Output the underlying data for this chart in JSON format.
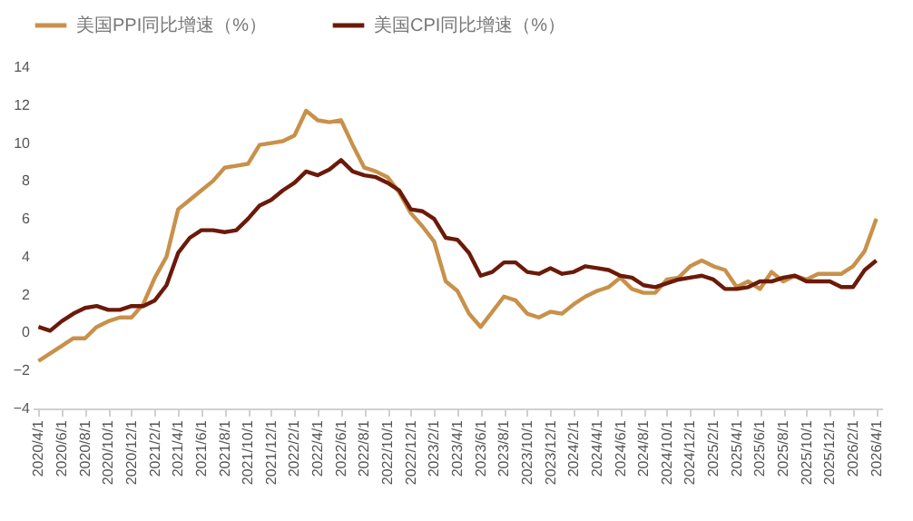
{
  "chart_data": {
    "type": "line",
    "legend": "top",
    "ylim": [
      -4,
      14
    ],
    "yticks": [
      -4,
      -2,
      0,
      2,
      4,
      6,
      8,
      10,
      12,
      14
    ],
    "categories": [
      "2020/4/1",
      null,
      "2020/6/1",
      null,
      "2020/8/1",
      null,
      "2020/10/1",
      null,
      "2020/12/1",
      null,
      "2021/2/1",
      null,
      "2021/4/1",
      null,
      "2021/6/1",
      null,
      "2021/8/1",
      null,
      "2021/10/1",
      null,
      "2021/12/1",
      null,
      "2022/2/1",
      null,
      "2022/4/1",
      null,
      "2022/6/1",
      null,
      "2022/8/1",
      null,
      "2022/10/1",
      null,
      "2022/12/1",
      null,
      "2023/2/1",
      null,
      "2023/4/1",
      null,
      "2023/6/1",
      null,
      "2023/8/1",
      null,
      "2023/10/1",
      null,
      "2023/12/1",
      null,
      "2024/2/1",
      null,
      "2024/4/1",
      null,
      "2024/6/1",
      null,
      "2024/8/1",
      null,
      "2024/10/1",
      null,
      "2024/12/1",
      null,
      "2025/2/1",
      null,
      "2025/4/1",
      null,
      "2025/6/1",
      null,
      "2025/8/1",
      null,
      "2025/10/1",
      null,
      "2025/12/1",
      null,
      "2026/2/1",
      null,
      "2026/4/1"
    ],
    "series": [
      {
        "name": "美国PPI同比增速（%）",
        "color": "#c8914a",
        "values": [
          -1.5,
          -1.1,
          -0.7,
          -0.3,
          -0.3,
          0.3,
          0.6,
          0.8,
          0.8,
          1.5,
          2.9,
          4.0,
          6.5,
          7.0,
          7.5,
          8.0,
          8.7,
          8.8,
          8.9,
          9.9,
          10.0,
          10.1,
          10.4,
          11.7,
          11.2,
          11.1,
          11.2,
          9.9,
          8.7,
          8.5,
          8.2,
          7.4,
          6.3,
          5.6,
          4.8,
          2.7,
          2.2,
          1.0,
          0.3,
          1.1,
          1.9,
          1.7,
          1.0,
          0.8,
          1.1,
          1.0,
          1.5,
          1.9,
          2.2,
          2.4,
          2.9,
          2.3,
          2.1,
          2.1,
          2.8,
          2.9,
          3.5,
          3.8,
          3.5,
          3.3,
          2.4,
          2.7,
          2.3,
          3.2,
          2.7,
          3.0,
          2.8,
          3.1,
          3.1,
          3.1,
          3.5,
          4.3,
          6.0
        ]
      },
      {
        "name": "美国CPI同比增速（%）",
        "color": "#6b1a0a",
        "values": [
          0.3,
          0.1,
          0.6,
          1.0,
          1.3,
          1.4,
          1.2,
          1.2,
          1.4,
          1.4,
          1.7,
          2.5,
          4.2,
          5.0,
          5.4,
          5.4,
          5.3,
          5.4,
          6.0,
          6.7,
          7.0,
          7.5,
          7.9,
          8.5,
          8.3,
          8.6,
          9.1,
          8.5,
          8.3,
          8.2,
          7.9,
          7.5,
          6.5,
          6.4,
          6.0,
          5.0,
          4.9,
          4.2,
          3.0,
          3.2,
          3.7,
          3.7,
          3.2,
          3.1,
          3.4,
          3.1,
          3.2,
          3.5,
          3.4,
          3.3,
          3.0,
          2.9,
          2.5,
          2.4,
          2.6,
          2.8,
          2.9,
          3.0,
          2.8,
          2.3,
          2.3,
          2.4,
          2.7,
          2.7,
          2.9,
          3.0,
          2.7,
          2.7,
          2.7,
          2.4,
          2.4,
          3.3,
          3.8
        ]
      }
    ]
  }
}
